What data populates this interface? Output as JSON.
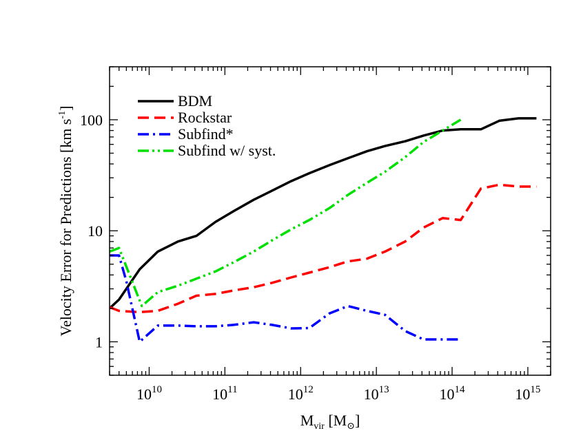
{
  "chart_data": {
    "type": "line",
    "xlabel": "M",
    "xlabel_sub": "vir",
    "xlabel_unit_open": " [M",
    "xlabel_unit_sub": "⊙",
    "xlabel_unit_close": "]",
    "ylabel": "Velocity Error for Predictions [km s",
    "ylabel_sup": "-1",
    "ylabel_close": "]",
    "x_scale": "log",
    "y_scale": "log",
    "xlim": [
      3000000000,
      2000000000000000.0
    ],
    "ylim": [
      0.5,
      300
    ],
    "x_ticks": [
      {
        "value": 10000000000.0,
        "base": "10",
        "exp": "10"
      },
      {
        "value": 100000000000.0,
        "base": "10",
        "exp": "11"
      },
      {
        "value": 1000000000000.0,
        "base": "10",
        "exp": "12"
      },
      {
        "value": 10000000000000.0,
        "base": "10",
        "exp": "13"
      },
      {
        "value": 100000000000000.0,
        "base": "10",
        "exp": "14"
      },
      {
        "value": 1000000000000000.0,
        "base": "10",
        "exp": "15"
      }
    ],
    "y_ticks": [
      {
        "value": 1,
        "label": "1"
      },
      {
        "value": 10,
        "label": "10"
      },
      {
        "value": 100,
        "label": "100"
      }
    ],
    "grid": false,
    "legend_position": "top-left",
    "series": [
      {
        "name": "BDM",
        "color": "#000000",
        "style": "solid",
        "x": [
          3000000000,
          4000000000,
          7500000000,
          13000000000.0,
          24000000000.0,
          42000000000.0,
          75000000000.0,
          130000000000.0,
          240000000000.0,
          420000000000.0,
          750000000000.0,
          1300000000000.0,
          2400000000000.0,
          4200000000000.0,
          7500000000000.0,
          13000000000000.0,
          24000000000000.0,
          42000000000000.0,
          75000000000000.0,
          130000000000000.0,
          240000000000000.0,
          420000000000000.0,
          750000000000000.0,
          1300000000000000.0
        ],
        "y": [
          2.0,
          2.4,
          4.5,
          6.5,
          8.0,
          9.0,
          12.0,
          15.0,
          19.0,
          23.0,
          28.0,
          33.0,
          39.0,
          45.0,
          52.0,
          58.0,
          64.0,
          72.0,
          80.0,
          82.0,
          82.0,
          98.0,
          103.0,
          103.0
        ]
      },
      {
        "name": "Rockstar",
        "color": "#ff0000",
        "style": "dashed",
        "x": [
          3000000000,
          4000000000,
          7500000000,
          13000000000.0,
          24000000000.0,
          42000000000.0,
          75000000000.0,
          130000000000.0,
          240000000000.0,
          420000000000.0,
          750000000000.0,
          1300000000000.0,
          2400000000000.0,
          4200000000000.0,
          7500000000000.0,
          13000000000000.0,
          24000000000000.0,
          42000000000000.0,
          75000000000000.0,
          130000000000000.0,
          240000000000000.0,
          420000000000000.0,
          750000000000000.0,
          1300000000000000.0
        ],
        "y": [
          2.05,
          1.9,
          1.85,
          1.9,
          2.2,
          2.6,
          2.7,
          2.9,
          3.1,
          3.4,
          3.8,
          4.2,
          4.7,
          5.3,
          5.6,
          6.5,
          8.0,
          10.7,
          13.0,
          12.5,
          24.0,
          26.0,
          25.0,
          25.0
        ]
      },
      {
        "name": "Subfind*",
        "color": "#0000ff",
        "style": "dashdot",
        "x": [
          3000000000,
          4000000000,
          5000000000,
          7500000000,
          13000000000.0,
          24000000000.0,
          42000000000.0,
          75000000000.0,
          130000000000.0,
          240000000000.0,
          420000000000.0,
          750000000000.0,
          1300000000000.0,
          2400000000000.0,
          4200000000000.0,
          7500000000000.0,
          13000000000000.0,
          24000000000000.0,
          42000000000000.0,
          75000000000000.0,
          120000000000000.0
        ],
        "y": [
          6.0,
          6.0,
          3.5,
          1.0,
          1.4,
          1.4,
          1.38,
          1.38,
          1.42,
          1.5,
          1.42,
          1.32,
          1.33,
          1.8,
          2.1,
          1.9,
          1.75,
          1.25,
          1.05,
          1.05,
          1.05
        ]
      },
      {
        "name": "Subfind w/ syst.",
        "color": "#00e000",
        "style": "dashdotdot",
        "x": [
          3000000000,
          4000000000,
          8000000000,
          13000000000.0,
          24000000000.0,
          42000000000.0,
          75000000000.0,
          130000000000.0,
          240000000000.0,
          420000000000.0,
          750000000000.0,
          1300000000000.0,
          2400000000000.0,
          4200000000000.0,
          7500000000000.0,
          13000000000000.0,
          24000000000000.0,
          42000000000000.0,
          75000000000000.0,
          130000000000000.0
        ],
        "y": [
          6.5,
          7.0,
          2.1,
          2.8,
          3.2,
          3.7,
          4.3,
          5.2,
          6.5,
          8.2,
          10.3,
          12.5,
          16.0,
          21.0,
          27.0,
          34.0,
          46.0,
          63.0,
          80.0,
          100.0
        ]
      }
    ]
  }
}
